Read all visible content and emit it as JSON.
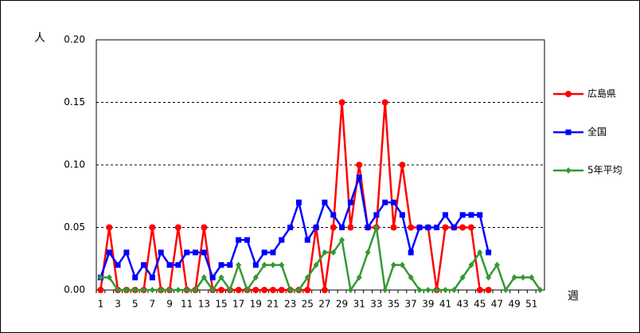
{
  "chart_data": {
    "type": "line",
    "y_label": "人",
    "x_label": "週",
    "categories": [
      1,
      null,
      3,
      null,
      5,
      null,
      7,
      null,
      9,
      null,
      11,
      null,
      13,
      null,
      15,
      null,
      17,
      null,
      19,
      null,
      21,
      null,
      23,
      null,
      25,
      null,
      27,
      null,
      29,
      null,
      31,
      null,
      33,
      null,
      35,
      null,
      37,
      null,
      39,
      null,
      41,
      null,
      43,
      null,
      45,
      null,
      47,
      null,
      49,
      null,
      51,
      null
    ],
    "ylim": [
      0,
      0.2
    ],
    "yticks": [
      {
        "value": 0,
        "label": "0.00"
      },
      {
        "value": 0.05,
        "label": "0.05"
      },
      {
        "value": 0.1,
        "label": "0.10"
      },
      {
        "value": 0.15,
        "label": "0.15"
      },
      {
        "value": 0.2,
        "label": "0.20"
      }
    ],
    "grid": true,
    "legend": "right",
    "series": [
      {
        "name": "広島県",
        "color": "#ff0000",
        "marker": "circle",
        "values": [
          0,
          0.05,
          0,
          0,
          0,
          0,
          0.05,
          0,
          0,
          0.05,
          0,
          0,
          0.05,
          0,
          0,
          0,
          0,
          0,
          0,
          0,
          0,
          0,
          0,
          0,
          0,
          0.05,
          0,
          0.05,
          0.15,
          0.05,
          0.1,
          0.05,
          0.05,
          0.15,
          0.05,
          0.1,
          0.05,
          0.05,
          0.05,
          0,
          0.05,
          0.05,
          0.05,
          0.05,
          0,
          0,
          null,
          null,
          null,
          null,
          null,
          null
        ]
      },
      {
        "name": "全国",
        "color": "#0000ff",
        "marker": "square",
        "values": [
          0.01,
          0.03,
          0.02,
          0.03,
          0.01,
          0.02,
          0.01,
          0.03,
          0.02,
          0.02,
          0.03,
          0.03,
          0.03,
          0.01,
          0.02,
          0.02,
          0.04,
          0.04,
          0.02,
          0.03,
          0.03,
          0.04,
          0.05,
          0.07,
          0.04,
          0.05,
          0.07,
          0.06,
          0.05,
          0.07,
          0.09,
          0.05,
          0.06,
          0.07,
          0.07,
          0.06,
          0.03,
          0.05,
          0.05,
          0.05,
          0.06,
          0.05,
          0.06,
          0.06,
          0.06,
          0.03,
          null,
          null,
          null,
          null,
          null,
          null
        ]
      },
      {
        "name": "5年平均",
        "color": "#339933",
        "marker": "diamond",
        "values": [
          0.01,
          0.01,
          0,
          0,
          0,
          0,
          0,
          0,
          0,
          0,
          0,
          0,
          0.01,
          0,
          0.01,
          0,
          0.02,
          0,
          0.01,
          0.02,
          0.02,
          0.02,
          0,
          0,
          0.01,
          0.02,
          0.03,
          0.03,
          0.04,
          0,
          0.01,
          0.03,
          0.05,
          0,
          0.02,
          0.02,
          0.01,
          0,
          0,
          0,
          0,
          0,
          0.01,
          0.02,
          0.03,
          0.01,
          0.02,
          0,
          0.01,
          0.01,
          0.01,
          0
        ]
      }
    ]
  }
}
